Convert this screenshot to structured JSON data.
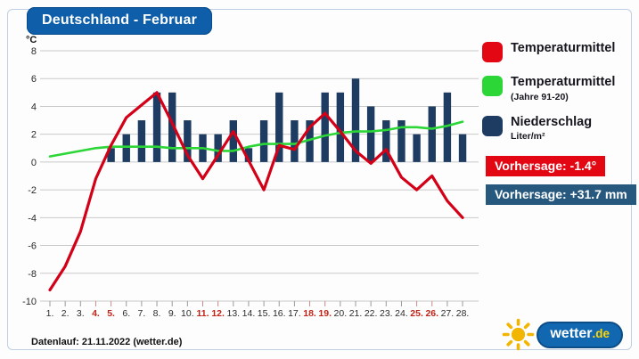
{
  "title": "Deutschland - Februar",
  "footer": {
    "datenlauf": "Datenlauf: 21.11.2022 (wetter.de)"
  },
  "logo": {
    "name": "wetter",
    "tld": ".de"
  },
  "legend": {
    "items": [
      {
        "label": "Temperaturmittel",
        "sub": "",
        "color": "#e30613"
      },
      {
        "label": "Temperaturmittel",
        "sub": "(Jahre 91-20)",
        "color": "#2bd636"
      },
      {
        "label": "Niederschlag",
        "sub": "Liter/m²",
        "color": "#1e3c61"
      }
    ]
  },
  "badges": [
    {
      "text": "Vorhersage: -1.4°",
      "color": "#e30613"
    },
    {
      "text": "Vorhersage: +31.7 mm",
      "color": "#27597f"
    }
  ],
  "chart_data": {
    "type": "combo bar+line",
    "title": "Deutschland - Februar",
    "ylabel": "°C",
    "ylim": [
      -10,
      8
    ],
    "yticks": [
      8,
      6,
      4,
      2,
      0,
      -2,
      -4,
      -6,
      -8,
      -10
    ],
    "grid": true,
    "categories": [
      "1.",
      "2.",
      "3.",
      "4.",
      "5.",
      "6.",
      "7.",
      "8.",
      "9.",
      "10.",
      "11.",
      "12.",
      "13.",
      "14.",
      "15.",
      "16.",
      "17.",
      "18.",
      "19.",
      "20.",
      "21.",
      "22.",
      "23.",
      "24.",
      "25.",
      "26.",
      "27.",
      "28."
    ],
    "weekend_days": [
      4,
      5,
      11,
      12,
      18,
      19,
      25,
      26
    ],
    "series": [
      {
        "name": "Niederschlag (Liter/m²)",
        "type": "bar",
        "color": "#1e3c61",
        "values": [
          0,
          0,
          0,
          0,
          1,
          2,
          3,
          5,
          5,
          3,
          2,
          2,
          3,
          1,
          3,
          5,
          3,
          3,
          5,
          5,
          6,
          4,
          3,
          3,
          2,
          4,
          5,
          2
        ]
      },
      {
        "name": "Temperaturmittel (Jahre 91-20)",
        "type": "line",
        "color": "#2bd636",
        "values": [
          0.4,
          0.6,
          0.8,
          1.0,
          1.1,
          1.1,
          1.1,
          1.1,
          1.0,
          1.0,
          1.0,
          0.8,
          0.8,
          1.1,
          1.3,
          1.3,
          1.3,
          1.6,
          1.9,
          2.1,
          2.2,
          2.2,
          2.3,
          2.5,
          2.5,
          2.4,
          2.6,
          2.9
        ]
      },
      {
        "name": "Temperaturmittel",
        "type": "line",
        "color": "#d30017",
        "values": [
          -9.2,
          -7.5,
          -5.0,
          -1.2,
          1.2,
          3.2,
          4.1,
          5.0,
          2.8,
          0.5,
          -1.2,
          0.5,
          2.2,
          0.1,
          -2.0,
          1.2,
          0.9,
          2.5,
          3.5,
          2.2,
          0.8,
          -0.1,
          0.9,
          -1.1,
          -2.0,
          -1.0,
          -2.8,
          -4.0
        ]
      }
    ],
    "axis_colors": {
      "tick_label": "#2b2b2b",
      "weekend_label": "#c02418",
      "gridline": "#c9c9c9"
    }
  }
}
